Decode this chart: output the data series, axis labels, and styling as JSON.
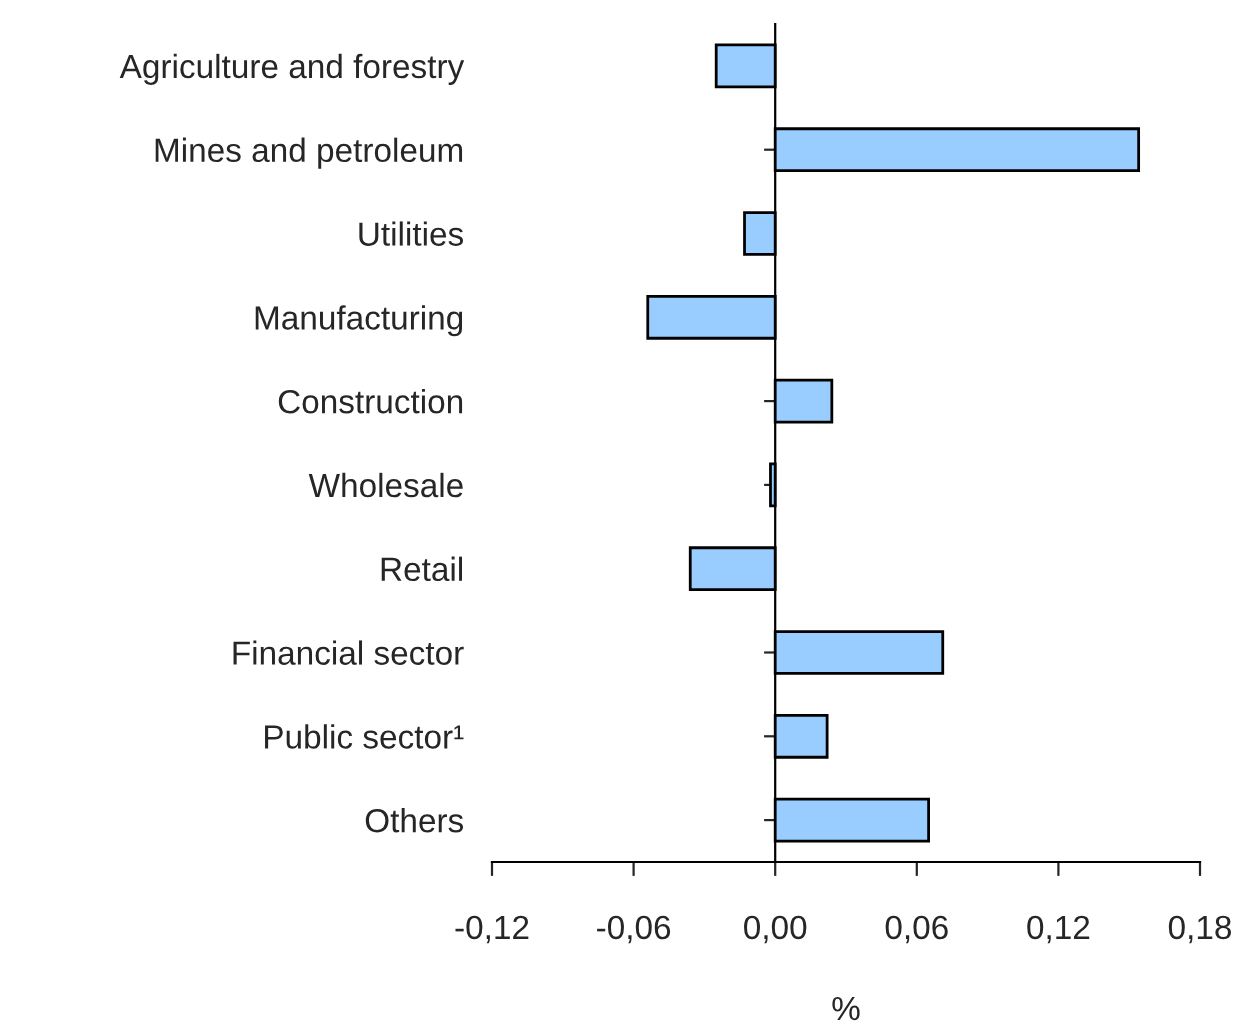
{
  "chart_data": {
    "type": "bar",
    "orientation": "horizontal",
    "xlabel": "%",
    "categories": [
      "Agriculture and forestry",
      "Mines and petroleum",
      "Utilities",
      "Manufacturing",
      "Construction",
      "Wholesale",
      "Retail",
      "Financial sector",
      "Public sector¹",
      "Others"
    ],
    "values": [
      -0.025,
      0.154,
      -0.013,
      -0.054,
      0.024,
      -0.002,
      -0.036,
      0.071,
      0.022,
      0.065
    ],
    "color": "#99ccff",
    "xlim": [
      -0.12,
      0.18
    ],
    "xticks": [
      {
        "value": -0.12,
        "label": "-0,12"
      },
      {
        "value": -0.06,
        "label": "-0,06"
      },
      {
        "value": 0,
        "label": "0,00"
      },
      {
        "value": 0.06,
        "label": "0,06"
      },
      {
        "value": 0.12,
        "label": "0,12"
      },
      {
        "value": 0.18,
        "label": "0,18"
      }
    ],
    "legend": false
  }
}
